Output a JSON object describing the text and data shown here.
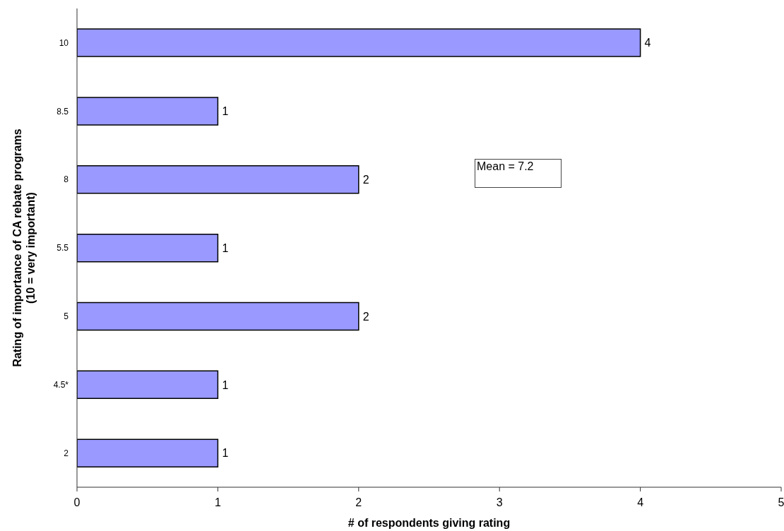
{
  "chart_data": {
    "type": "bar",
    "orientation": "horizontal",
    "categories": [
      "10",
      "8.5",
      "8",
      "5.5",
      "5",
      "4.5*",
      "2"
    ],
    "values": [
      4,
      1,
      2,
      1,
      2,
      1,
      1
    ],
    "color": "#9999ff",
    "xlim": [
      0,
      5
    ],
    "xticks": [
      0,
      1,
      2,
      3,
      4,
      5
    ],
    "xlabel": "# of respondents giving rating",
    "ylabel": "Rating of importance of CA rebate programs\n(10 = very important)",
    "annotations": [
      "Mean = 7.2"
    ],
    "data_labels": true
  }
}
